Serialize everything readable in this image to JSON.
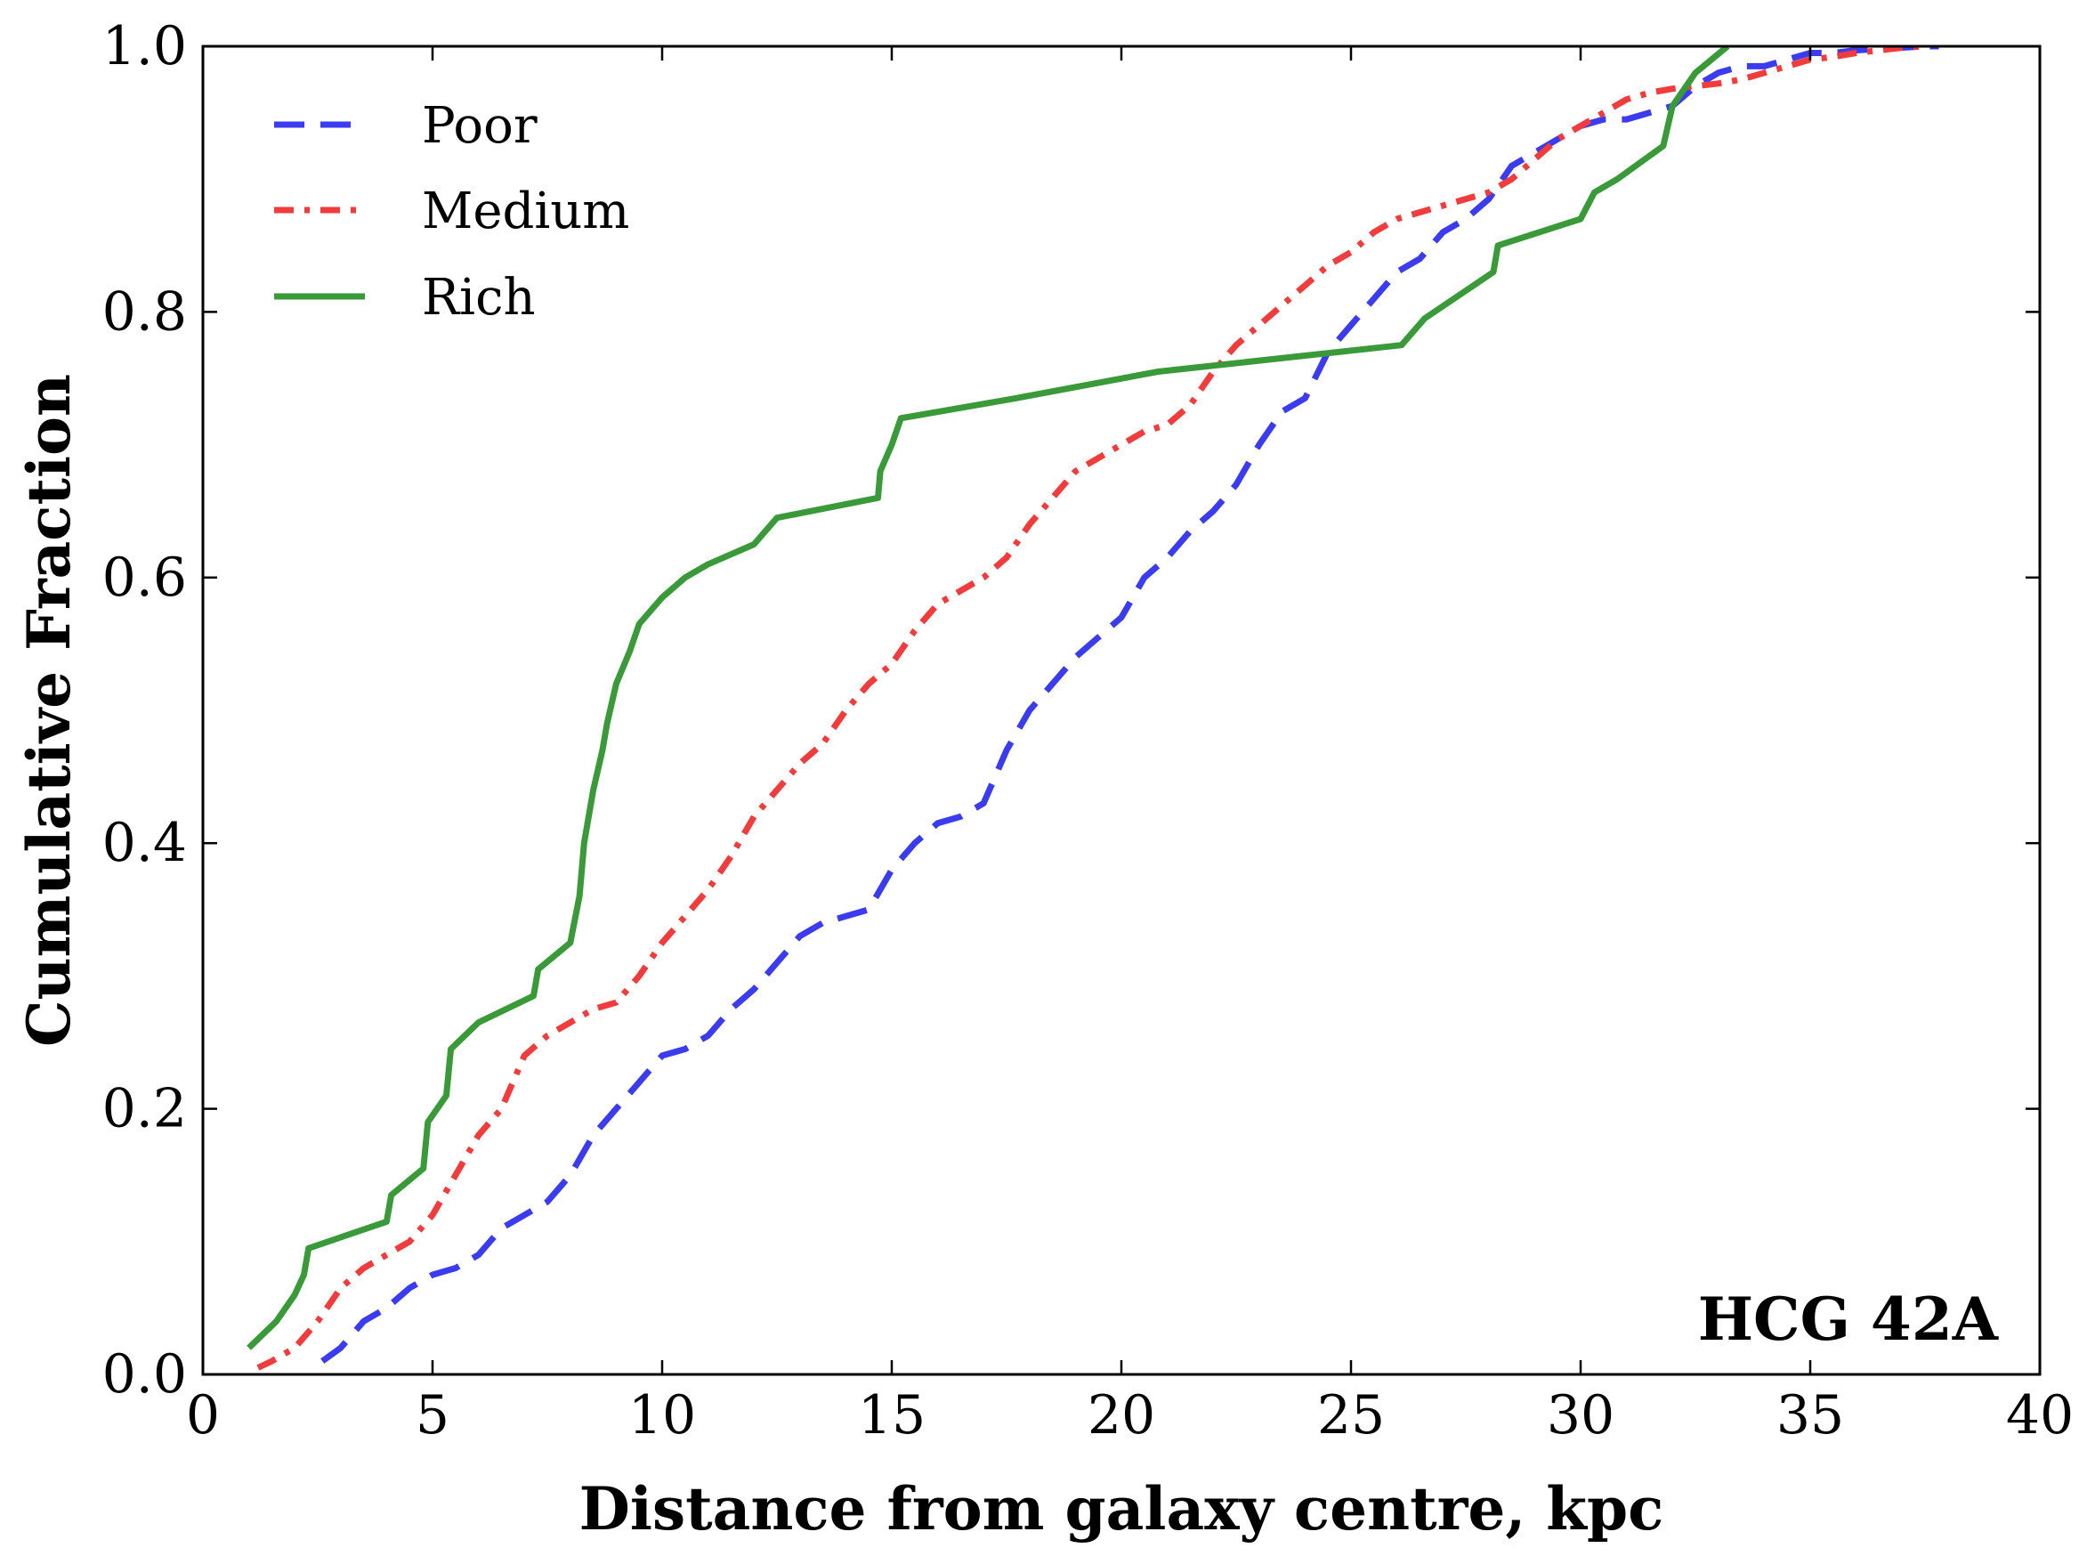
{
  "chart_data": {
    "type": "line",
    "title": "",
    "xlabel": "Distance from galaxy centre, kpc",
    "ylabel": "Cumulative Fraction",
    "xlim": [
      0,
      40
    ],
    "ylim": [
      0,
      1.0
    ],
    "xticks": [
      0,
      5,
      10,
      15,
      20,
      25,
      30,
      35,
      40
    ],
    "xtick_labels": [
      "0",
      "5",
      "10",
      "15",
      "20",
      "25",
      "30",
      "35",
      "40"
    ],
    "yticks": [
      0.0,
      0.2,
      0.4,
      0.6,
      0.8,
      1.0
    ],
    "ytick_labels": [
      "0.0",
      "0.2",
      "0.4",
      "0.6",
      "0.8",
      "1.0"
    ],
    "grid": false,
    "legend_position": "top-left",
    "annotation": "HCG 42A",
    "series": [
      {
        "name": "Poor",
        "color": "#3b3bf0",
        "style": "dashed",
        "x": [
          2.6,
          3.0,
          3.5,
          4.0,
          4.5,
          5.0,
          5.5,
          6.0,
          6.5,
          7.0,
          7.5,
          8.0,
          8.5,
          9.0,
          9.5,
          10.0,
          10.5,
          11.0,
          11.5,
          12.0,
          12.5,
          13.0,
          13.5,
          14.0,
          14.5,
          15.0,
          15.5,
          16.0,
          16.5,
          17.0,
          17.5,
          18.0,
          18.5,
          19.0,
          19.5,
          20.0,
          20.5,
          21.0,
          21.5,
          22.0,
          22.5,
          23.0,
          23.5,
          24.0,
          24.5,
          25.0,
          25.5,
          26.0,
          26.5,
          27.0,
          27.5,
          28.0,
          28.5,
          29.0,
          29.5,
          30.0,
          30.5,
          31.0,
          31.5,
          32.0,
          32.5,
          33.0,
          33.5,
          34.0,
          34.5,
          35.0,
          35.5,
          36.0,
          36.5,
          37.0,
          37.5,
          37.8
        ],
        "y": [
          0.01,
          0.02,
          0.04,
          0.05,
          0.065,
          0.075,
          0.08,
          0.09,
          0.11,
          0.12,
          0.13,
          0.15,
          0.18,
          0.2,
          0.22,
          0.24,
          0.245,
          0.255,
          0.275,
          0.29,
          0.31,
          0.33,
          0.34,
          0.345,
          0.35,
          0.38,
          0.4,
          0.415,
          0.42,
          0.43,
          0.47,
          0.5,
          0.52,
          0.54,
          0.555,
          0.57,
          0.6,
          0.615,
          0.635,
          0.65,
          0.67,
          0.7,
          0.725,
          0.735,
          0.77,
          0.79,
          0.81,
          0.83,
          0.84,
          0.86,
          0.87,
          0.885,
          0.91,
          0.92,
          0.93,
          0.94,
          0.945,
          0.945,
          0.95,
          0.955,
          0.97,
          0.98,
          0.985,
          0.985,
          0.99,
          0.995,
          0.995,
          0.997,
          0.998,
          0.999,
          1.0,
          1.0
        ]
      },
      {
        "name": "Medium",
        "color": "#f03c3c",
        "style": "dashdot",
        "x": [
          1.2,
          1.5,
          2.0,
          2.5,
          3.0,
          3.5,
          4.0,
          4.5,
          5.0,
          5.5,
          6.0,
          6.5,
          7.0,
          7.5,
          8.0,
          8.5,
          9.0,
          9.5,
          10.0,
          10.5,
          11.0,
          11.5,
          12.0,
          12.5,
          13.0,
          13.5,
          14.0,
          14.5,
          15.0,
          15.5,
          16.0,
          16.5,
          17.0,
          17.5,
          18.0,
          18.5,
          19.0,
          19.5,
          20.0,
          20.5,
          21.0,
          21.5,
          22.0,
          22.5,
          23.0,
          23.5,
          24.0,
          24.5,
          25.0,
          25.5,
          26.0,
          26.5,
          27.0,
          27.5,
          28.0,
          28.5,
          29.0,
          29.5,
          30.0,
          30.5,
          31.0,
          31.5,
          32.0,
          32.5,
          33.0,
          33.5,
          34.0,
          34.5,
          35.0,
          35.5,
          36.0,
          36.5,
          37.0,
          37.5
        ],
        "y": [
          0.005,
          0.01,
          0.02,
          0.04,
          0.065,
          0.08,
          0.09,
          0.1,
          0.12,
          0.15,
          0.18,
          0.2,
          0.24,
          0.255,
          0.265,
          0.275,
          0.28,
          0.3,
          0.325,
          0.345,
          0.365,
          0.39,
          0.42,
          0.44,
          0.46,
          0.475,
          0.5,
          0.52,
          0.535,
          0.56,
          0.58,
          0.59,
          0.6,
          0.615,
          0.64,
          0.66,
          0.68,
          0.69,
          0.7,
          0.71,
          0.715,
          0.73,
          0.755,
          0.775,
          0.79,
          0.805,
          0.82,
          0.835,
          0.845,
          0.86,
          0.87,
          0.875,
          0.88,
          0.885,
          0.89,
          0.9,
          0.915,
          0.93,
          0.94,
          0.95,
          0.96,
          0.965,
          0.968,
          0.97,
          0.972,
          0.975,
          0.98,
          0.985,
          0.99,
          0.992,
          0.995,
          0.997,
          0.999,
          1.0
        ]
      },
      {
        "name": "Rich",
        "color": "#3a9a3a",
        "style": "solid",
        "x": [
          1.0,
          1.6,
          2.0,
          2.2,
          2.3,
          4.0,
          4.1,
          4.8,
          4.9,
          5.3,
          5.4,
          6.0,
          7.2,
          7.3,
          8.0,
          8.2,
          8.3,
          8.5,
          8.7,
          8.8,
          9.0,
          9.3,
          9.5,
          10.0,
          10.5,
          11.0,
          12.0,
          12.5,
          14.7,
          14.75,
          15.0,
          15.2,
          17.7,
          20.8,
          26.1,
          26.6,
          28.1,
          28.2,
          30.0,
          30.3,
          30.8,
          31.2,
          31.8,
          32.0,
          32.5,
          33.2
        ],
        "y": [
          0.02,
          0.04,
          0.06,
          0.075,
          0.095,
          0.115,
          0.135,
          0.155,
          0.19,
          0.21,
          0.245,
          0.265,
          0.285,
          0.305,
          0.325,
          0.36,
          0.4,
          0.44,
          0.47,
          0.49,
          0.52,
          0.545,
          0.565,
          0.585,
          0.6,
          0.61,
          0.625,
          0.645,
          0.66,
          0.68,
          0.7,
          0.72,
          0.735,
          0.755,
          0.775,
          0.795,
          0.83,
          0.85,
          0.87,
          0.89,
          0.9,
          0.91,
          0.925,
          0.955,
          0.98,
          1.0
        ]
      }
    ]
  }
}
